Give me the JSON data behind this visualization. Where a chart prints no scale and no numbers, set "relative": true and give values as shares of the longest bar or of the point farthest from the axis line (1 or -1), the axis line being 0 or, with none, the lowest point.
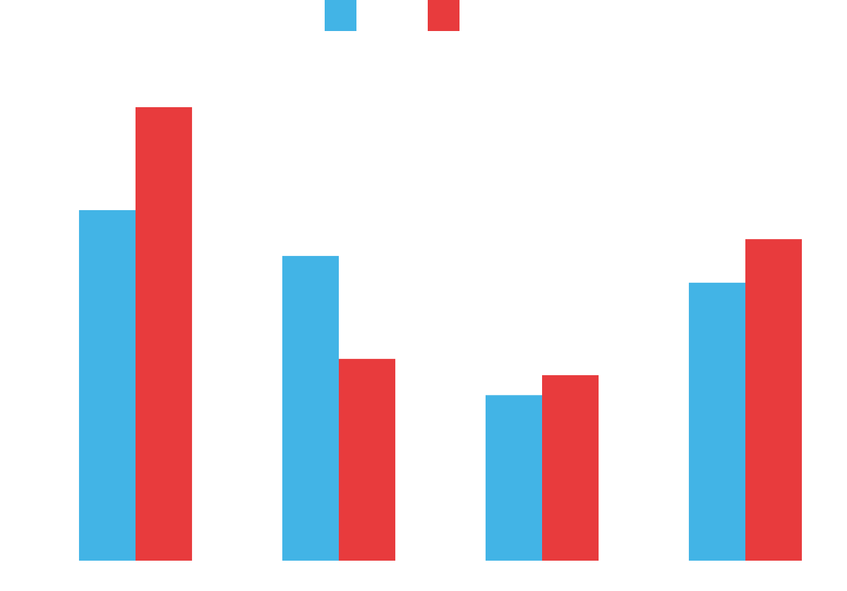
{
  "chart_data": {
    "type": "bar",
    "relative": true,
    "categories": [
      null,
      null,
      null,
      null
    ],
    "series": [
      {
        "color": "#42b4e6",
        "values": [
          0.773,
          0.672,
          0.365,
          0.613
        ]
      },
      {
        "color": "#e83b3d",
        "values": [
          1,
          0.445,
          0.409,
          0.709
        ]
      }
    ]
  }
}
